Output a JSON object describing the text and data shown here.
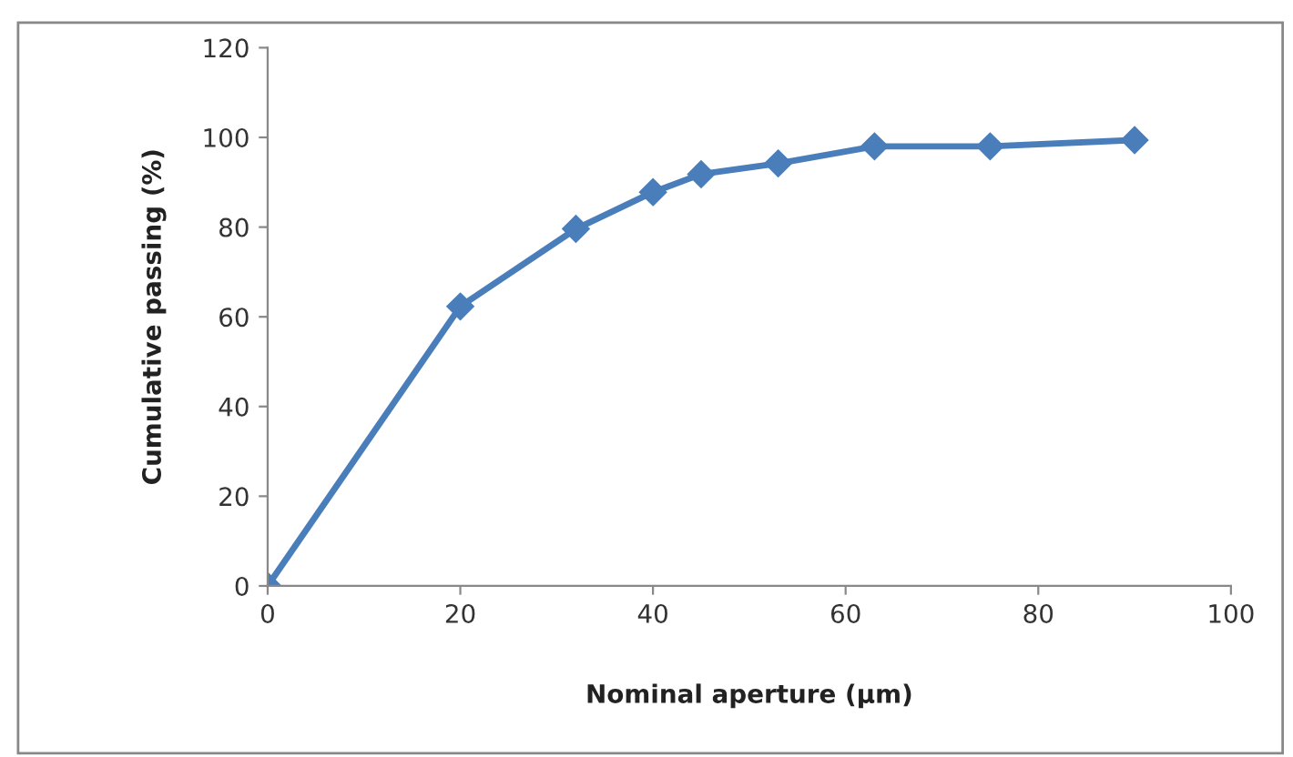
{
  "chart_data": {
    "type": "line",
    "xlabel": "Nominal aperture (µm)",
    "ylabel": "Cumulative passing (%)",
    "x": [
      0,
      20,
      32,
      40,
      45,
      53,
      63,
      75,
      90
    ],
    "series": [
      {
        "color": "#4a7ebb",
        "values": [
          0,
          62.3,
          79.6,
          87.8,
          91.8,
          94.2,
          98.0,
          98.0,
          99.4
        ]
      }
    ],
    "xlim": [
      0,
      100
    ],
    "xticks": [
      0,
      20,
      40,
      60,
      80,
      100
    ],
    "ylim": [
      0,
      120
    ],
    "yticks": [
      0,
      20,
      40,
      60,
      80,
      100,
      120
    ],
    "grid": false,
    "legend": false,
    "marker": "diamond",
    "line_style": "solid"
  }
}
